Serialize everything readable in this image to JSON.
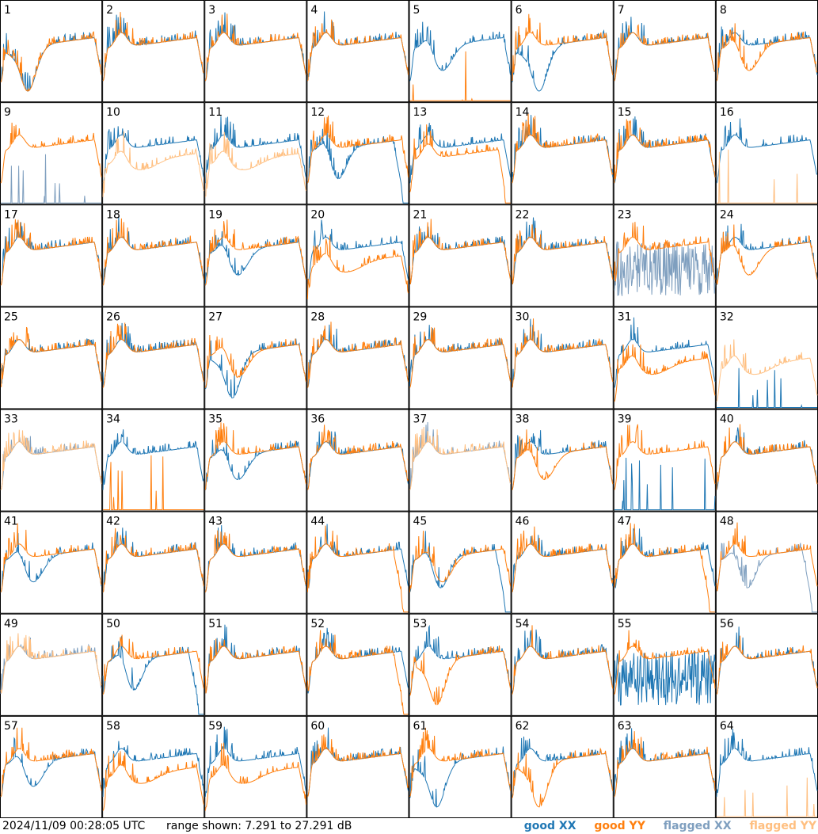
{
  "timestamp": "2024/11/09 00:28:05 UTC",
  "range_text": "range shown: 7.291 to 27.291 dB",
  "legend": [
    {
      "label": "good XX",
      "color": "#1f77b4"
    },
    {
      "label": "good YY",
      "color": "#ff7f0e"
    },
    {
      "label": "flagged XX",
      "color": "#7f9fbf"
    },
    {
      "label": "flagged YY",
      "color": "#ffbf80"
    }
  ],
  "chart_data": {
    "type": "line",
    "title": "",
    "ylim": [
      7.291,
      27.291
    ],
    "grid": {
      "rows": 8,
      "cols": 8
    },
    "panels": [
      {
        "id": "1",
        "xx": "good",
        "yy": "good",
        "xx_profile": "dip_deep",
        "yy_profile": "dip_deep"
      },
      {
        "id": "2",
        "xx": "good",
        "yy": "good",
        "xx_profile": "normal",
        "yy_profile": "normal"
      },
      {
        "id": "3",
        "xx": "good",
        "yy": "good",
        "xx_profile": "normal",
        "yy_profile": "normal"
      },
      {
        "id": "4",
        "xx": "good",
        "yy": "good",
        "xx_profile": "normal",
        "yy_profile": "normal"
      },
      {
        "id": "5",
        "xx": "good",
        "yy": "good",
        "xx_profile": "dip",
        "yy_profile": "dead"
      },
      {
        "id": "6",
        "xx": "good",
        "yy": "good",
        "xx_profile": "dip_deep",
        "yy_profile": "normal"
      },
      {
        "id": "7",
        "xx": "good",
        "yy": "good",
        "xx_profile": "normal",
        "yy_profile": "normal"
      },
      {
        "id": "8",
        "xx": "good",
        "yy": "good",
        "xx_profile": "normal",
        "yy_profile": "dip"
      },
      {
        "id": "9",
        "xx": "flagged",
        "yy": "good",
        "xx_profile": "dead",
        "yy_profile": "normal"
      },
      {
        "id": "10",
        "xx": "good",
        "yy": "flagged",
        "xx_profile": "normal",
        "yy_profile": "low"
      },
      {
        "id": "11",
        "xx": "good",
        "yy": "flagged",
        "xx_profile": "normal",
        "yy_profile": "low"
      },
      {
        "id": "12",
        "xx": "good",
        "yy": "good",
        "xx_profile": "dip_rolloff",
        "yy_profile": "normal"
      },
      {
        "id": "13",
        "xx": "good",
        "yy": "good",
        "xx_profile": "normal",
        "yy_profile": "low_rolloff"
      },
      {
        "id": "14",
        "xx": "good",
        "yy": "good",
        "xx_profile": "normal",
        "yy_profile": "normal"
      },
      {
        "id": "15",
        "xx": "good",
        "yy": "good",
        "xx_profile": "normal",
        "yy_profile": "normal"
      },
      {
        "id": "16",
        "xx": "good",
        "yy": "flagged",
        "xx_profile": "normal",
        "yy_profile": "dead"
      },
      {
        "id": "17",
        "xx": "good",
        "yy": "good",
        "xx_profile": "normal",
        "yy_profile": "normal"
      },
      {
        "id": "18",
        "xx": "good",
        "yy": "good",
        "xx_profile": "normal",
        "yy_profile": "normal"
      },
      {
        "id": "19",
        "xx": "good",
        "yy": "good",
        "xx_profile": "dip",
        "yy_profile": "normal"
      },
      {
        "id": "20",
        "xx": "good",
        "yy": "good",
        "xx_profile": "normal",
        "yy_profile": "low"
      },
      {
        "id": "21",
        "xx": "good",
        "yy": "good",
        "xx_profile": "normal",
        "yy_profile": "normal"
      },
      {
        "id": "22",
        "xx": "good",
        "yy": "good",
        "xx_profile": "normal",
        "yy_profile": "normal"
      },
      {
        "id": "23",
        "xx": "flagged",
        "yy": "good",
        "xx_profile": "noise",
        "yy_profile": "normal"
      },
      {
        "id": "24",
        "xx": "good",
        "yy": "good",
        "xx_profile": "normal",
        "yy_profile": "dip"
      },
      {
        "id": "25",
        "xx": "good",
        "yy": "good",
        "xx_profile": "normal",
        "yy_profile": "normal"
      },
      {
        "id": "26",
        "xx": "good",
        "yy": "good",
        "xx_profile": "normal",
        "yy_profile": "normal"
      },
      {
        "id": "27",
        "xx": "good",
        "yy": "good",
        "xx_profile": "dip_deep",
        "yy_profile": "dip"
      },
      {
        "id": "28",
        "xx": "good",
        "yy": "good",
        "xx_profile": "normal",
        "yy_profile": "normal"
      },
      {
        "id": "29",
        "xx": "good",
        "yy": "good",
        "xx_profile": "normal",
        "yy_profile": "normal"
      },
      {
        "id": "30",
        "xx": "good",
        "yy": "good",
        "xx_profile": "normal",
        "yy_profile": "normal"
      },
      {
        "id": "31",
        "xx": "good",
        "yy": "good",
        "xx_profile": "normal",
        "yy_profile": "low"
      },
      {
        "id": "32",
        "xx": "good",
        "yy": "flagged",
        "xx_profile": "dead",
        "yy_profile": "low"
      },
      {
        "id": "33",
        "xx": "flagged",
        "yy": "flagged",
        "xx_profile": "normal",
        "yy_profile": "normal"
      },
      {
        "id": "34",
        "xx": "good",
        "yy": "good",
        "xx_profile": "normal",
        "yy_profile": "dead"
      },
      {
        "id": "35",
        "xx": "good",
        "yy": "good",
        "xx_profile": "dip",
        "yy_profile": "normal"
      },
      {
        "id": "36",
        "xx": "good",
        "yy": "good",
        "xx_profile": "normal",
        "yy_profile": "normal"
      },
      {
        "id": "37",
        "xx": "flagged",
        "yy": "flagged",
        "xx_profile": "normal",
        "yy_profile": "normal"
      },
      {
        "id": "38",
        "xx": "good",
        "yy": "good",
        "xx_profile": "normal",
        "yy_profile": "dip"
      },
      {
        "id": "39",
        "xx": "good",
        "yy": "good",
        "xx_profile": "dead",
        "yy_profile": "normal"
      },
      {
        "id": "40",
        "xx": "good",
        "yy": "good",
        "xx_profile": "normal",
        "yy_profile": "normal"
      },
      {
        "id": "41",
        "xx": "good",
        "yy": "good",
        "xx_profile": "dip",
        "yy_profile": "normal"
      },
      {
        "id": "42",
        "xx": "good",
        "yy": "good",
        "xx_profile": "normal",
        "yy_profile": "normal"
      },
      {
        "id": "43",
        "xx": "good",
        "yy": "good",
        "xx_profile": "normal",
        "yy_profile": "normal"
      },
      {
        "id": "44",
        "xx": "good",
        "yy": "good",
        "xx_profile": "normal",
        "yy_profile": "rolloff"
      },
      {
        "id": "45",
        "xx": "good",
        "yy": "good",
        "xx_profile": "dip_rolloff",
        "yy_profile": "dip"
      },
      {
        "id": "46",
        "xx": "good",
        "yy": "good",
        "xx_profile": "normal",
        "yy_profile": "normal"
      },
      {
        "id": "47",
        "xx": "good",
        "yy": "good",
        "xx_profile": "normal",
        "yy_profile": "rolloff"
      },
      {
        "id": "48",
        "xx": "flagged",
        "yy": "good",
        "xx_profile": "dip_rolloff",
        "yy_profile": "normal"
      },
      {
        "id": "49",
        "xx": "flagged",
        "yy": "flagged",
        "xx_profile": "normal",
        "yy_profile": "normal"
      },
      {
        "id": "50",
        "xx": "good",
        "yy": "good",
        "xx_profile": "dip_rolloff",
        "yy_profile": "normal"
      },
      {
        "id": "51",
        "xx": "good",
        "yy": "good",
        "xx_profile": "normal",
        "yy_profile": "normal"
      },
      {
        "id": "52",
        "xx": "good",
        "yy": "good",
        "xx_profile": "normal",
        "yy_profile": "rolloff"
      },
      {
        "id": "53",
        "xx": "good",
        "yy": "good",
        "xx_profile": "normal",
        "yy_profile": "dip_deep"
      },
      {
        "id": "54",
        "xx": "good",
        "yy": "good",
        "xx_profile": "normal",
        "yy_profile": "normal"
      },
      {
        "id": "55",
        "xx": "good",
        "yy": "good",
        "xx_profile": "noise",
        "yy_profile": "normal"
      },
      {
        "id": "56",
        "xx": "good",
        "yy": "good",
        "xx_profile": "normal",
        "yy_profile": "normal"
      },
      {
        "id": "57",
        "xx": "good",
        "yy": "good",
        "xx_profile": "dip",
        "yy_profile": "normal"
      },
      {
        "id": "58",
        "xx": "good",
        "yy": "good",
        "xx_profile": "normal",
        "yy_profile": "low"
      },
      {
        "id": "59",
        "xx": "good",
        "yy": "good",
        "xx_profile": "normal",
        "yy_profile": "low"
      },
      {
        "id": "60",
        "xx": "good",
        "yy": "good",
        "xx_profile": "normal",
        "yy_profile": "normal"
      },
      {
        "id": "61",
        "xx": "good",
        "yy": "good",
        "xx_profile": "dip_deep",
        "yy_profile": "normal"
      },
      {
        "id": "62",
        "xx": "good",
        "yy": "good",
        "xx_profile": "normal",
        "yy_profile": "dip_deep"
      },
      {
        "id": "63",
        "xx": "good",
        "yy": "good",
        "xx_profile": "normal",
        "yy_profile": "normal"
      },
      {
        "id": "64",
        "xx": "good",
        "yy": "flagged",
        "xx_profile": "normal",
        "yy_profile": "dead"
      }
    ]
  }
}
